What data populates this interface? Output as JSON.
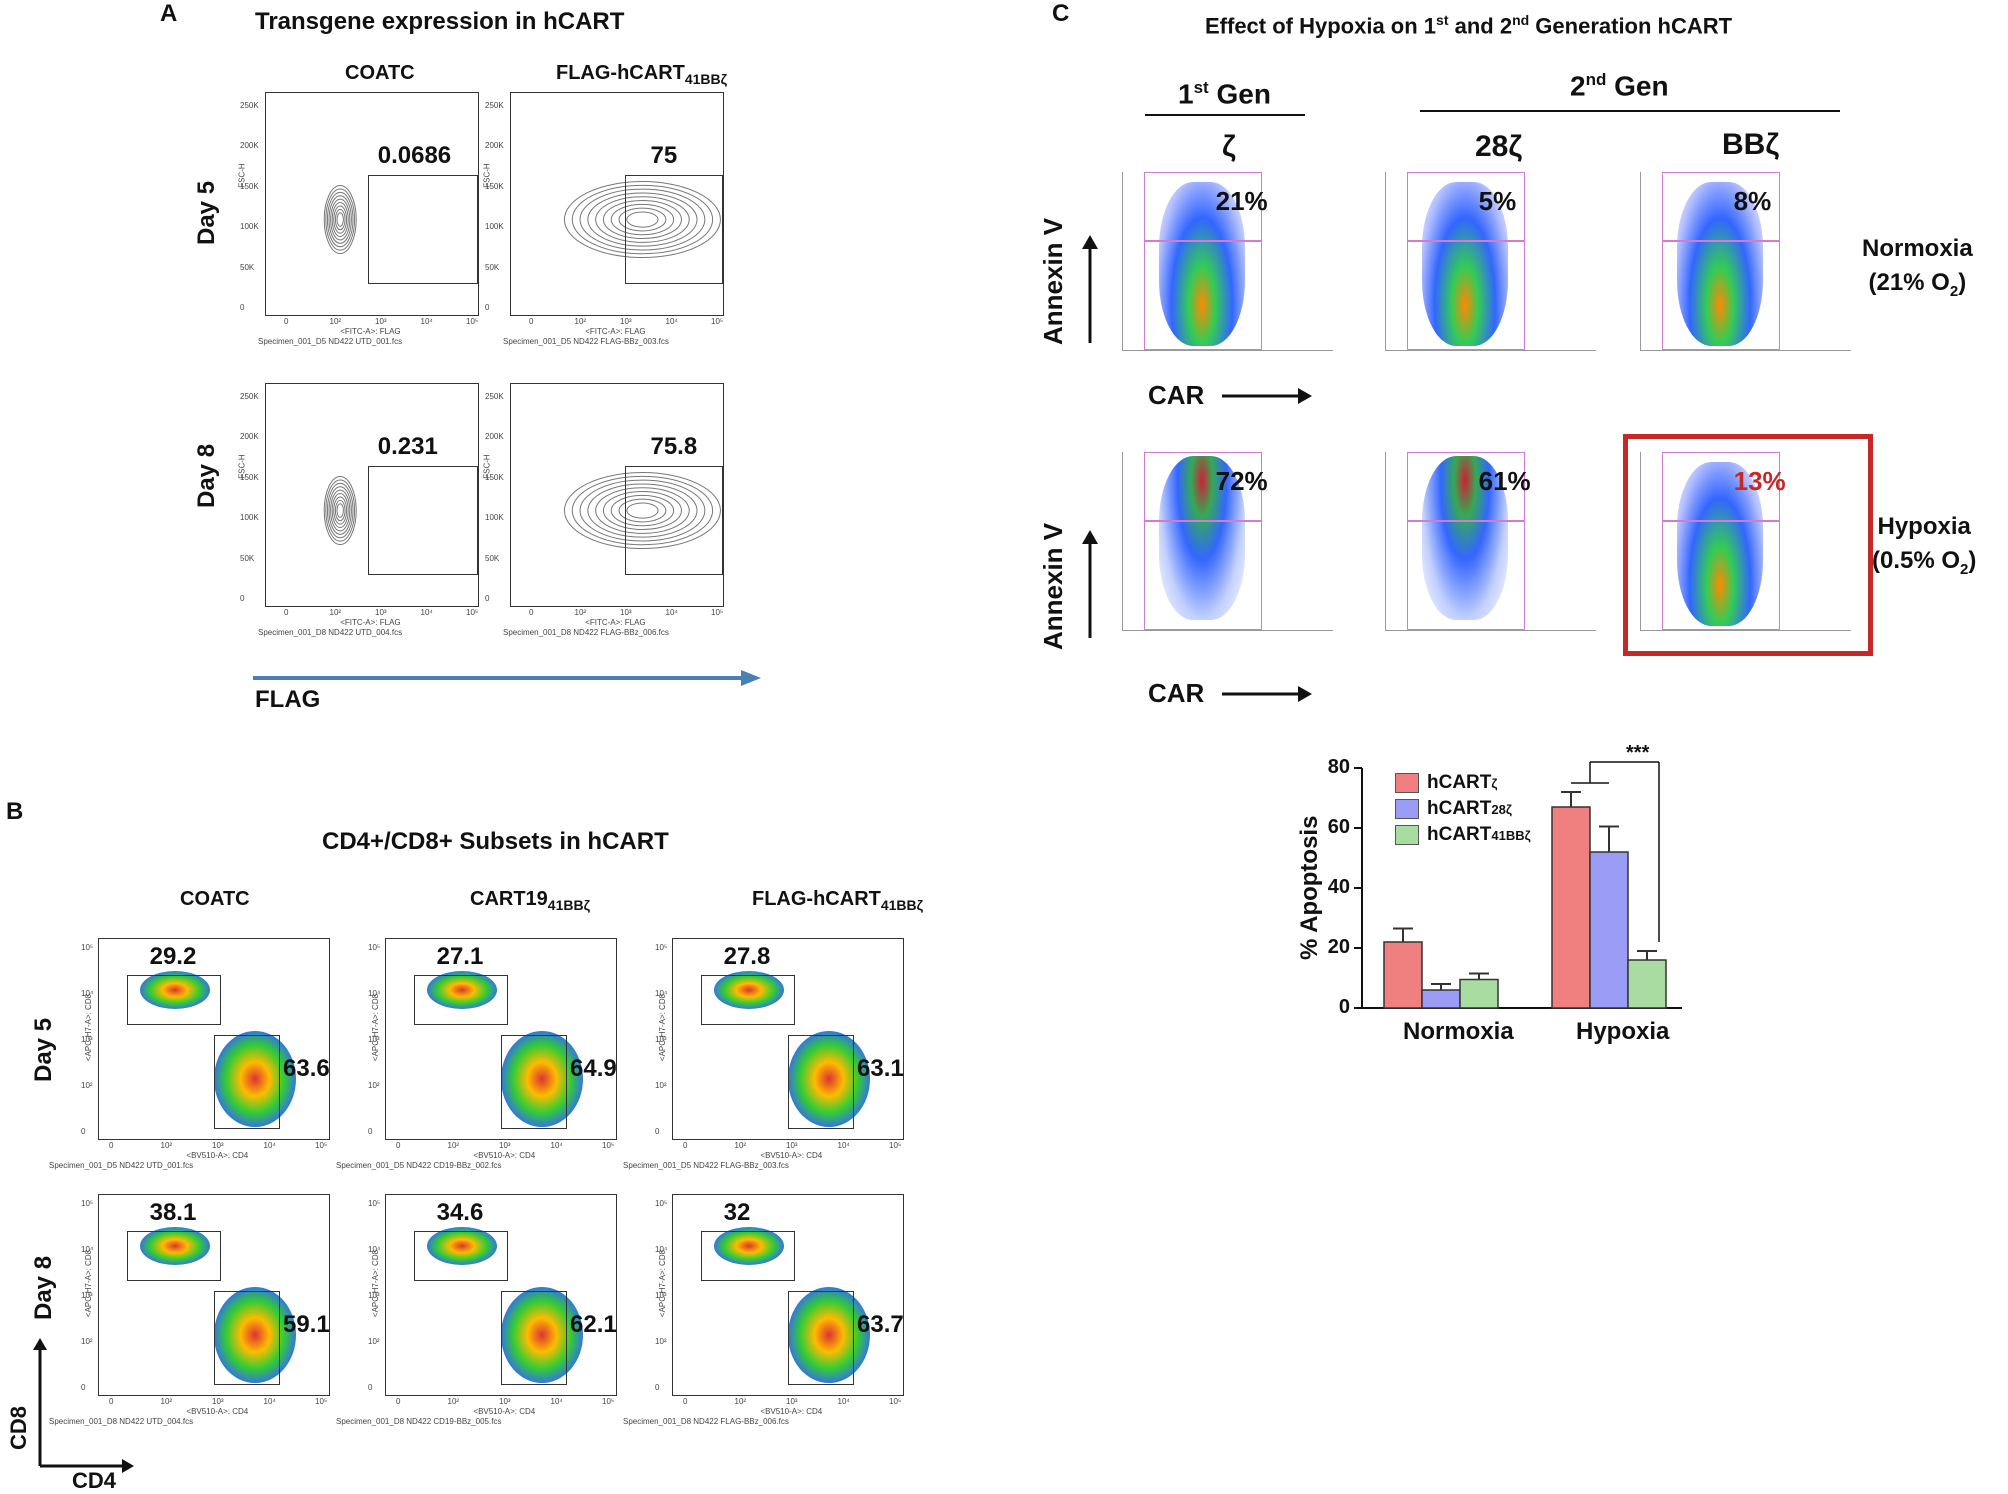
{
  "panelA": {
    "label": "A",
    "title": "Transgene expression in hCART",
    "columns": [
      "COATC",
      "FLAG-hCART",
      "41BBζ"
    ],
    "rows": [
      "Day 5",
      "Day 8"
    ],
    "gates": [
      "0.0686",
      "75",
      "0.231",
      "75.8"
    ],
    "yaxis": "FSC-H",
    "xaxis": "<FITC-A>: FLAG",
    "specimens": [
      "Specimen_001_D5 ND422 UTD_001.fcs",
      "Specimen_001_D5 ND422 FLAG-BBz_003.fcs",
      "Specimen_001_D8 ND422 UTD_004.fcs",
      "Specimen_001_D8 ND422 FLAG-BBz_006.fcs"
    ],
    "yticks": [
      "250K",
      "200K",
      "150K",
      "100K",
      "50K",
      "0"
    ],
    "xticks": [
      "0",
      "10²",
      "10³",
      "10⁴",
      "10⁵"
    ],
    "arrow_label": "FLAG"
  },
  "panelB": {
    "label": "B",
    "title": "CD4+/CD8+ Subsets in hCART",
    "columns": [
      {
        "main": "COATC",
        "sub": ""
      },
      {
        "main": "CART19",
        "sub": "41BBζ"
      },
      {
        "main": "FLAG-hCART",
        "sub": "41BBζ"
      }
    ],
    "rows": [
      "Day 5",
      "Day 8"
    ],
    "cd8_vals": [
      "29.2",
      "27.1",
      "27.8",
      "38.1",
      "34.6",
      "32"
    ],
    "cd4_vals": [
      "63.6",
      "64.9",
      "63.1",
      "59.1",
      "62.1",
      "63.7"
    ],
    "yaxis": "<APC-H7-A>: CD8",
    "xaxis": "<BV510-A>: CD4",
    "specimens": [
      "Specimen_001_D5 ND422 UTD_001.fcs",
      "Specimen_001_D5 ND422 CD19-BBz_002.fcs",
      "Specimen_001_D5 ND422 FLAG-BBz_003.fcs",
      "Specimen_001_D8 ND422 UTD_004.fcs",
      "Specimen_001_D8 ND422 CD19-BBz_005.fcs",
      "Specimen_001_D8 ND422 FLAG-BBz_006.fcs"
    ],
    "axis_y": "CD8",
    "axis_x": "CD4",
    "yticks": [
      "10⁵",
      "10⁴",
      "10³",
      "10²",
      "0"
    ],
    "xticks": [
      "0",
      "10²",
      "10³",
      "10⁴",
      "10⁵"
    ]
  },
  "panelC": {
    "label": "C",
    "title_pre": "Effect of Hypoxia on 1",
    "title_sup1": "st",
    "title_mid": " and 2",
    "title_sup2": "nd",
    "title_post": " Generation hCART",
    "gen1": "1",
    "gen1_sup": "st",
    "gen1_post": " Gen",
    "gen2": "2",
    "gen2_sup": "nd",
    "gen2_post": " Gen",
    "cols": [
      "ζ",
      "28ζ",
      "BBζ"
    ],
    "normoxia_vals": [
      "21%",
      "5%",
      "8%"
    ],
    "hypoxia_vals": [
      "72%",
      "61%",
      "13%"
    ],
    "normoxia_label": "Normoxia",
    "normoxia_o2": "(21% O",
    "hypoxia_label": "Hypoxia",
    "hypoxia_o2": "(0.5% O",
    "o2_sub": "2",
    "close_paren": ")",
    "annexin": "Annexin V",
    "car": "CAR",
    "highlight_color": "#c62828"
  },
  "chart_data": {
    "type": "bar",
    "categories": [
      "Normoxia",
      "Hypoxia"
    ],
    "series": [
      {
        "name": "hCARTζ",
        "values": [
          22,
          67
        ],
        "errors": [
          4.5,
          5
        ],
        "color": "#f08080"
      },
      {
        "name": "hCART28ζ",
        "values": [
          6,
          52
        ],
        "errors": [
          2,
          8.5
        ],
        "color": "#9a9cf5"
      },
      {
        "name": "hCART41BBζ",
        "values": [
          9.5,
          16
        ],
        "errors": [
          2,
          3
        ],
        "color": "#a8dca0"
      }
    ],
    "ylabel": "% Apoptosis",
    "ylim": [
      0,
      80
    ],
    "yticks": [
      "0",
      "20",
      "40",
      "60",
      "80"
    ],
    "legend_names": [
      "hCART",
      "hCART",
      "hCART"
    ],
    "legend_subs": [
      "ζ",
      "28ζ",
      "41BBζ"
    ],
    "significance": "***"
  }
}
